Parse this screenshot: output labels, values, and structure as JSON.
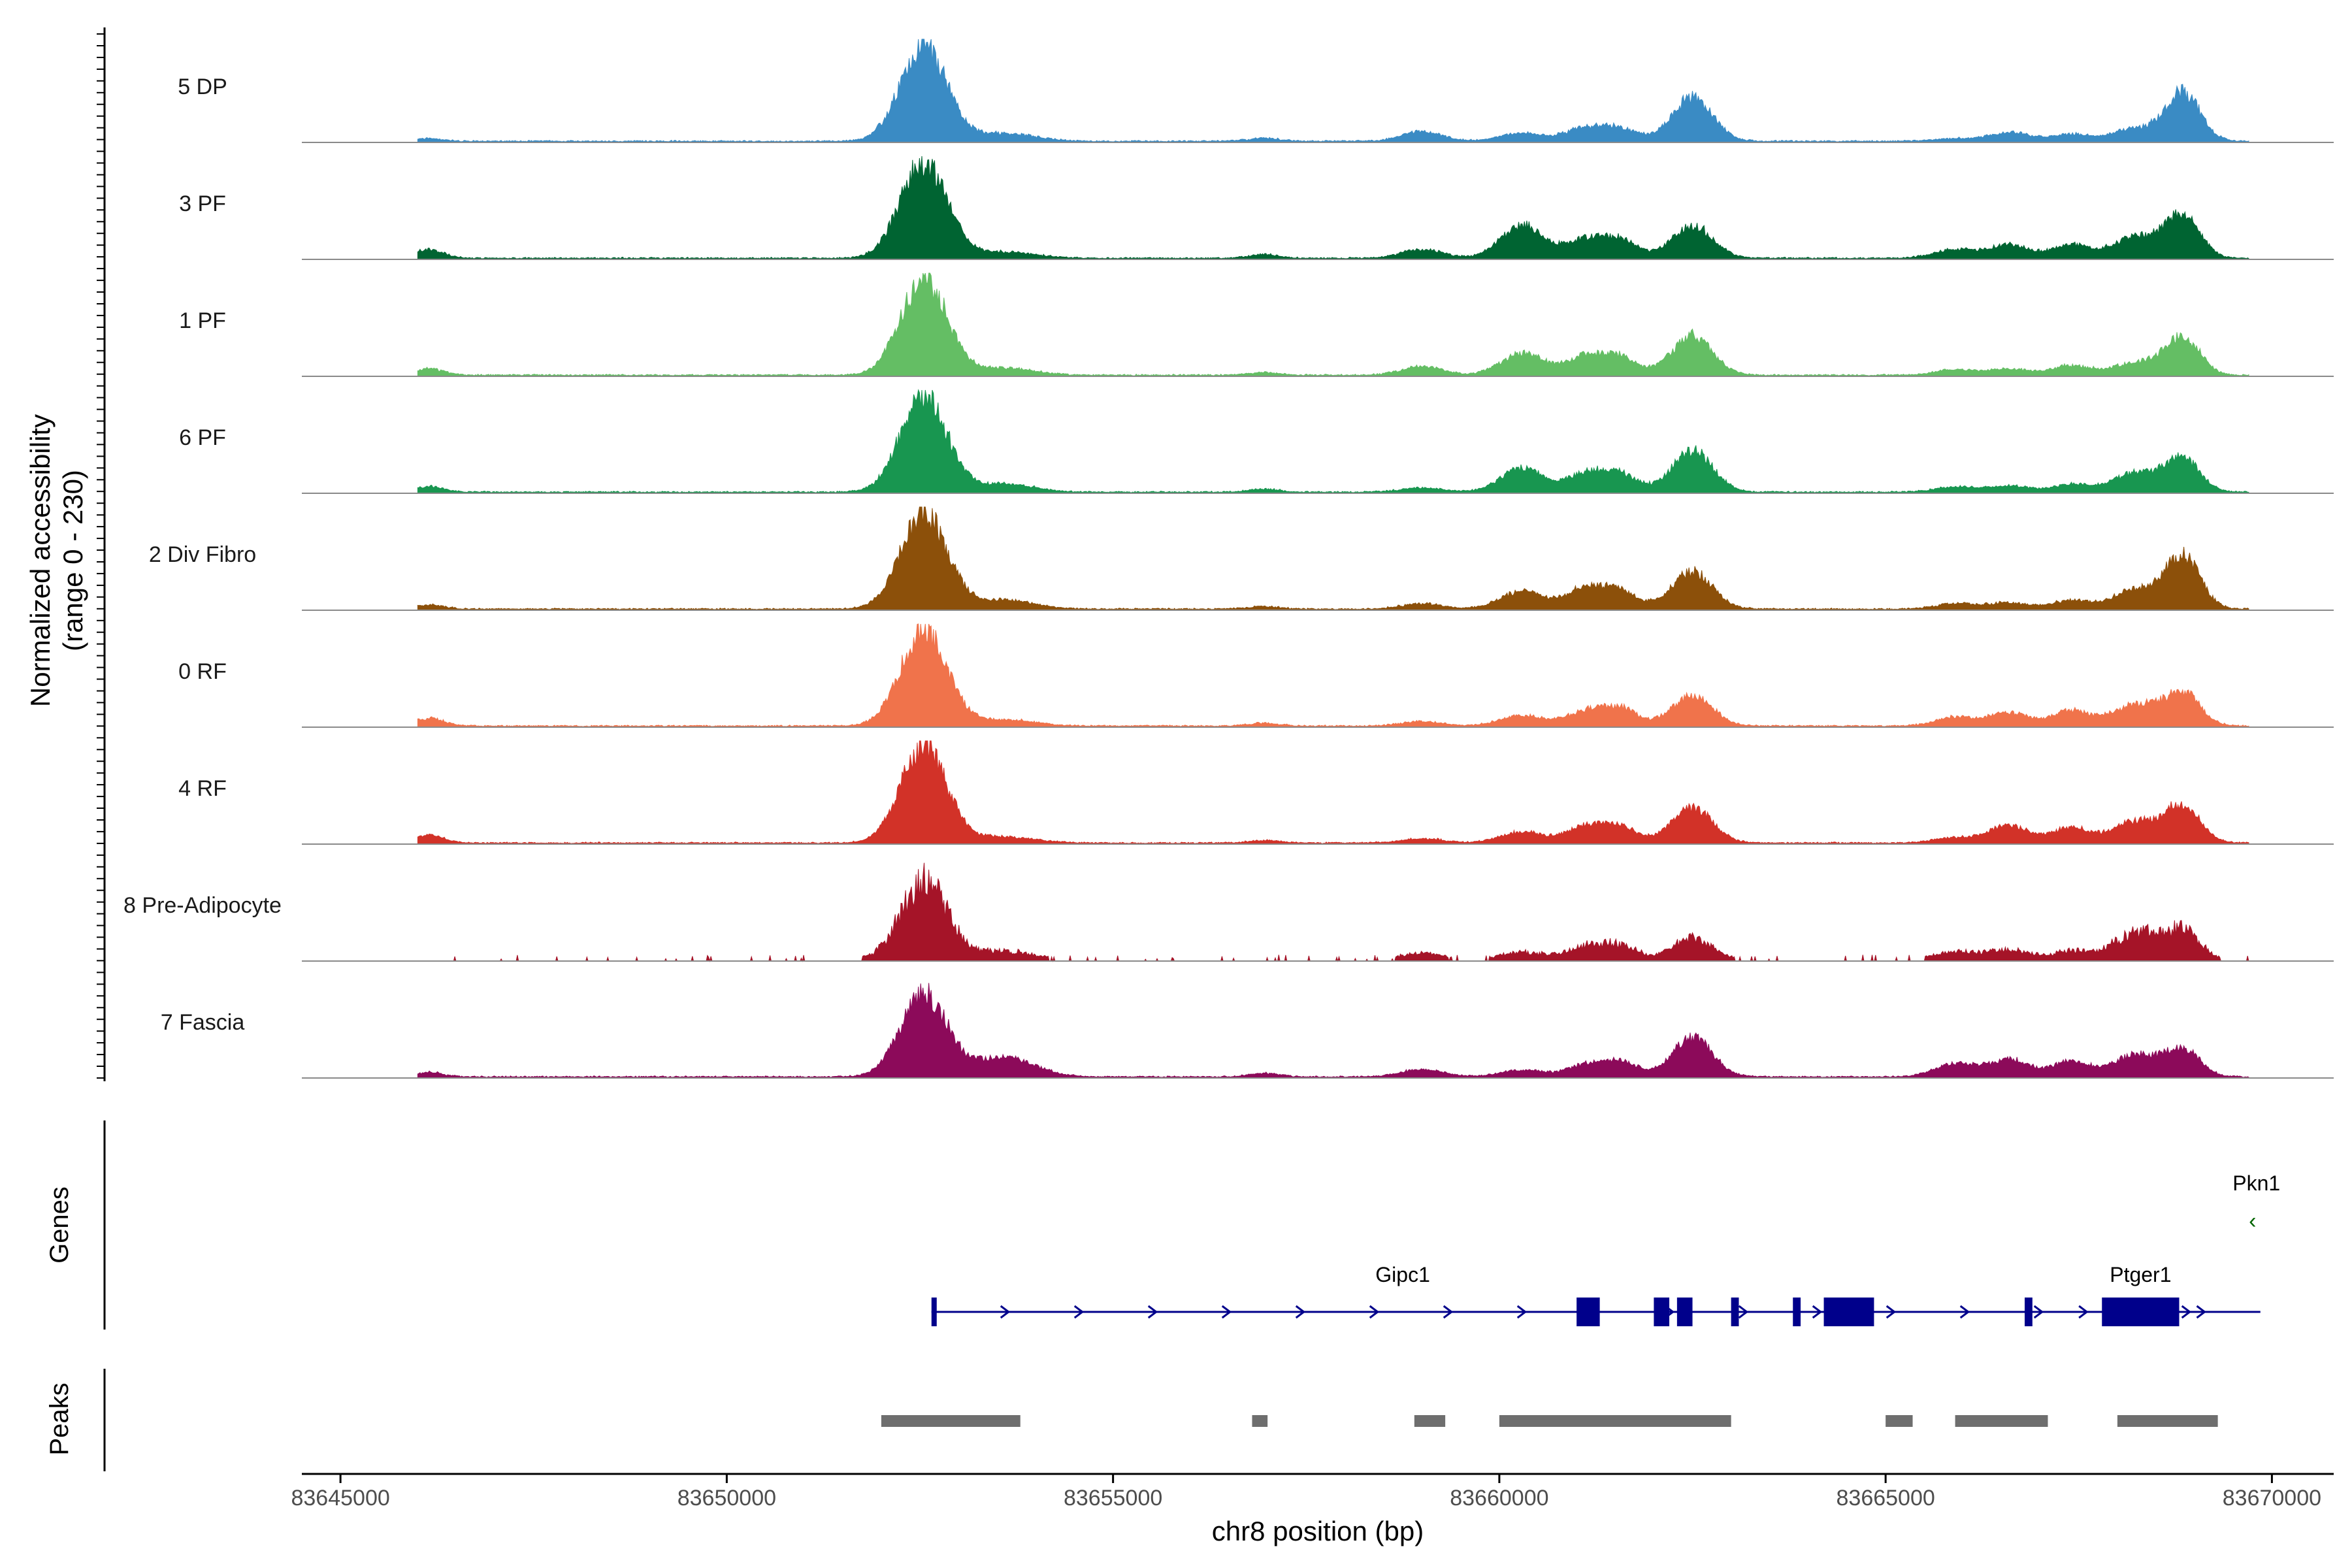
{
  "chart_data": {
    "type": "area",
    "title": "",
    "xlabel": "chr8 position (bp)",
    "ylabel": "Normalized accessibility",
    "ylabel_sub": "(range 0 - 230)",
    "xlim": [
      83644500,
      83670800
    ],
    "ylim": [
      0,
      230
    ],
    "x_ticks": [
      83645000,
      83650000,
      83655000,
      83660000,
      83665000,
      83670000
    ],
    "x_tick_labels": [
      "83645000",
      "83650000",
      "83655000",
      "83660000",
      "83665000",
      "83670000"
    ],
    "peak_positions": [
      83646150,
      83652550,
      83653600,
      83656950,
      83659000,
      83660300,
      83661100,
      83661550,
      83662500,
      83665900,
      83666600,
      83667400,
      83668250,
      83668850
    ],
    "series": [
      {
        "name": "5 DP",
        "color": "#3a8bc4",
        "heights": [
          6,
          220,
          18,
          7,
          22,
          20,
          28,
          28,
          100,
          6,
          20,
          16,
          30,
          110
        ]
      },
      {
        "name": "3 PF",
        "color": "#006432",
        "heights": [
          20,
          220,
          14,
          8,
          20,
          75,
          40,
          40,
          75,
          20,
          30,
          30,
          50,
          95
        ]
      },
      {
        "name": "1 PF",
        "color": "#64be64",
        "heights": [
          15,
          220,
          16,
          6,
          20,
          50,
          40,
          40,
          90,
          12,
          14,
          22,
          30,
          85
        ]
      },
      {
        "name": "6 PF",
        "color": "#189650",
        "heights": [
          12,
          220,
          18,
          7,
          10,
          55,
          40,
          40,
          95,
          12,
          14,
          18,
          45,
          75
        ]
      },
      {
        "name": "2 Div Fibro",
        "color": "#8c500a",
        "heights": [
          10,
          220,
          20,
          6,
          12,
          40,
          45,
          40,
          85,
          12,
          14,
          20,
          45,
          120
        ]
      },
      {
        "name": "0 RF",
        "color": "#f0734b",
        "heights": [
          18,
          220,
          14,
          6,
          10,
          25,
          30,
          40,
          70,
          20,
          30,
          35,
          50,
          75
        ]
      },
      {
        "name": "4 RF",
        "color": "#d23228",
        "heights": [
          18,
          220,
          14,
          6,
          10,
          25,
          35,
          35,
          80,
          12,
          40,
          35,
          50,
          85
        ]
      },
      {
        "name": "8 Pre-Adipocyte",
        "color": "#a51428",
        "heights": [
          0,
          200,
          22,
          0,
          18,
          20,
          30,
          35,
          55,
          22,
          26,
          22,
          70,
          70
        ]
      },
      {
        "name": "7 Fascia",
        "color": "#8c0a5a",
        "heights": [
          10,
          190,
          45,
          8,
          18,
          16,
          24,
          35,
          90,
          30,
          40,
          35,
          50,
          60
        ]
      }
    ],
    "genes": [
      {
        "name": "Gipc1",
        "strand": "+",
        "color": "#00008b",
        "start": 83652650,
        "end": 83669850,
        "exons": [
          [
            83652650,
            83652700
          ],
          [
            83661000,
            83661300
          ],
          [
            83662000,
            83662200
          ],
          [
            83662300,
            83662500
          ],
          [
            83663000,
            83663100
          ],
          [
            83663800,
            83663900
          ],
          [
            83664200,
            83664850
          ]
        ]
      },
      {
        "name": "Ptger1",
        "strand": "+",
        "color": "#00008b",
        "start": 83666800,
        "end": 83669850,
        "exons": [
          [
            83666800,
            83666900
          ],
          [
            83667800,
            83668800
          ]
        ]
      },
      {
        "name": "Pkn1",
        "strand": "-",
        "color": "#006400",
        "start": 83669750,
        "end": 83669850,
        "exons": []
      }
    ],
    "peaks": [
      [
        83652000,
        83653800
      ],
      [
        83656800,
        83657000
      ],
      [
        83658900,
        83659300
      ],
      [
        83660000,
        83663000
      ],
      [
        83665000,
        83665350
      ],
      [
        83665900,
        83667100
      ],
      [
        83668000,
        83669300
      ]
    ],
    "panels": {
      "genes": "Genes",
      "peaks": "Peaks"
    }
  }
}
